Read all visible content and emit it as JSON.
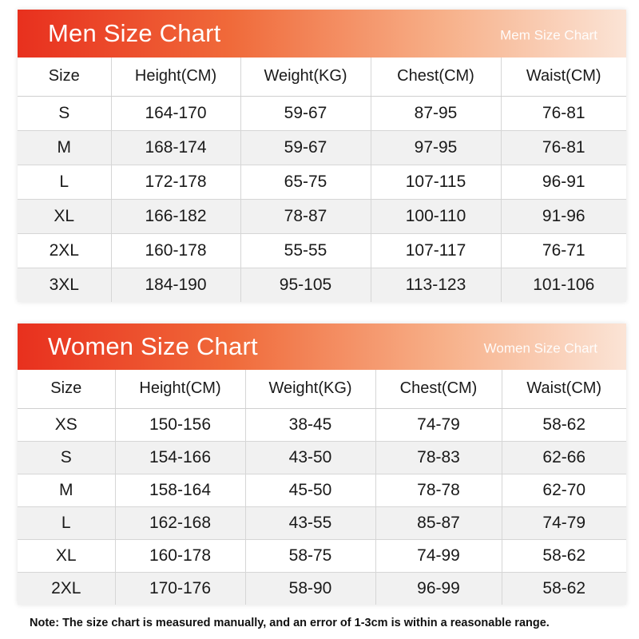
{
  "men": {
    "title": "Men Size Chart",
    "subtitle": "Mem Size Chart",
    "headers": [
      "Size",
      "Height(CM)",
      "Weight(KG)",
      "Chest(CM)",
      "Waist(CM)"
    ],
    "rows": [
      [
        "S",
        "164-170",
        "59-67",
        "87-95",
        "76-81"
      ],
      [
        "M",
        "168-174",
        "59-67",
        "97-95",
        "76-81"
      ],
      [
        "L",
        "172-178",
        "65-75",
        "107-115",
        "96-91"
      ],
      [
        "XL",
        "166-182",
        "78-87",
        "100-110",
        "91-96"
      ],
      [
        "2XL",
        "160-178",
        "55-55",
        "107-117",
        "76-71"
      ],
      [
        "3XL",
        "184-190",
        "95-105",
        "113-123",
        "101-106"
      ]
    ]
  },
  "women": {
    "title": "Women Size Chart",
    "subtitle": "Women Size Chart",
    "headers": [
      "Size",
      "Height(CM)",
      "Weight(KG)",
      "Chest(CM)",
      "Waist(CM)"
    ],
    "rows": [
      [
        "XS",
        "150-156",
        "38-45",
        "74-79",
        "58-62"
      ],
      [
        "S",
        "154-166",
        "43-50",
        "78-83",
        "62-66"
      ],
      [
        "M",
        "158-164",
        "45-50",
        "78-78",
        "62-70"
      ],
      [
        "L",
        "162-168",
        "43-55",
        "85-87",
        "74-79"
      ],
      [
        "XL",
        "160-178",
        "58-75",
        "74-99",
        "58-62"
      ],
      [
        "2XL",
        "170-176",
        "58-90",
        "96-99",
        "58-62"
      ]
    ]
  },
  "note": "Note: The size chart is measured manually, and an error of 1-3cm is within a reasonable range.",
  "colors": {
    "banner_start": "#e8301e",
    "banner_end": "#fbe4d6",
    "alt_row": "#f1f1f1",
    "grid": "#d6d6d6"
  }
}
